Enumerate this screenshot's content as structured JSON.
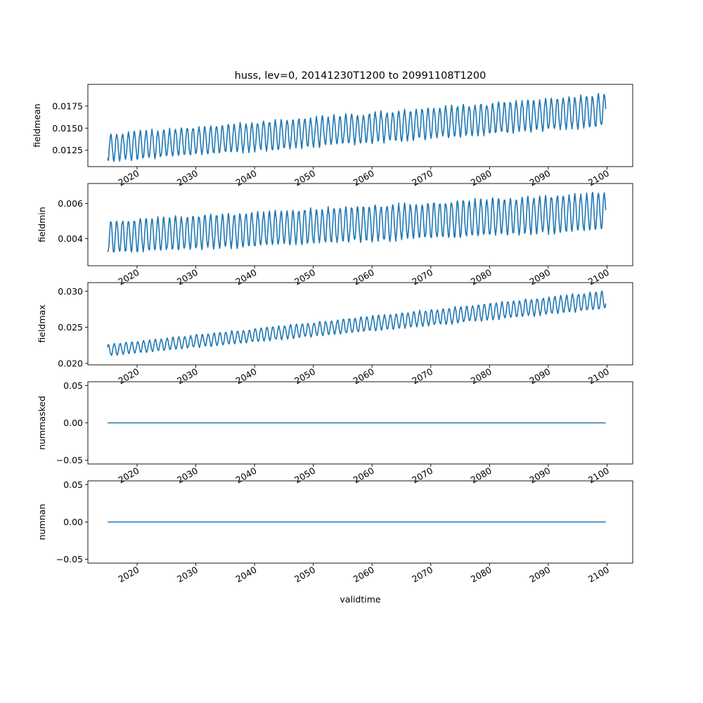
{
  "figure": {
    "title": "huss, lev=0, 20141230T1200 to 20991108T1200",
    "xlabel": "validtime",
    "line_color": "#1f77b4"
  },
  "chart_data": [
    {
      "type": "line",
      "ylabel": "fieldmean",
      "xlim": [
        "2011-08-17",
        "2104-05-17"
      ],
      "ylim": [
        0.01065,
        0.01995
      ],
      "yticks": [
        "0.0125",
        "0.0150",
        "0.0175"
      ],
      "xticks": [
        "2020",
        "2030",
        "2040",
        "2050",
        "2060",
        "2070",
        "2080",
        "2090",
        "2100"
      ],
      "series": {
        "start": "2014-12-30",
        "end": "2099-11-08",
        "step": "monthly",
        "seasonal": true,
        "min_start": 0.0113,
        "min_end": 0.0153,
        "max_start": 0.0143,
        "max_end": 0.0188,
        "peak_month": 7
      }
    },
    {
      "type": "line",
      "ylabel": "fieldmin",
      "xlim": [
        "2011-08-17",
        "2104-05-17"
      ],
      "ylim": [
        0.00245,
        0.00715
      ],
      "yticks": [
        "0.004",
        "0.006"
      ],
      "xticks": [
        "2020",
        "2030",
        "2040",
        "2050",
        "2060",
        "2070",
        "2080",
        "2090",
        "2100"
      ],
      "series": {
        "start": "2014-12-30",
        "end": "2099-11-08",
        "step": "monthly",
        "seasonal": true,
        "min_start": 0.0032,
        "min_end": 0.0045,
        "max_start": 0.005,
        "max_end": 0.0066,
        "peak_month": 7
      }
    },
    {
      "type": "line",
      "ylabel": "fieldmax",
      "xlim": [
        "2011-08-17",
        "2104-05-17"
      ],
      "ylim": [
        0.0198,
        0.0312
      ],
      "yticks": [
        "0.020",
        "0.025",
        "0.030"
      ],
      "xticks": [
        "2020",
        "2030",
        "2040",
        "2050",
        "2060",
        "2070",
        "2080",
        "2090",
        "2100"
      ],
      "series": {
        "start": "2014-12-30",
        "end": "2099-11-08",
        "step": "monthly",
        "seasonal": true,
        "min_start": 0.0211,
        "min_end": 0.0276,
        "max_start": 0.0226,
        "max_end": 0.03,
        "peak_month": 2
      }
    },
    {
      "type": "line",
      "ylabel": "nummasked",
      "xlim": [
        "2011-08-17",
        "2104-05-17"
      ],
      "ylim": [
        -0.055,
        0.055
      ],
      "yticks": [
        "−0.05",
        "0.00",
        "0.05"
      ],
      "xticks": [
        "2020",
        "2030",
        "2040",
        "2050",
        "2060",
        "2070",
        "2080",
        "2090",
        "2100"
      ],
      "series": {
        "start": "2014-12-30",
        "end": "2099-11-08",
        "constant": 0
      }
    },
    {
      "type": "line",
      "ylabel": "numnan",
      "xlim": [
        "2011-08-17",
        "2104-05-17"
      ],
      "ylim": [
        -0.055,
        0.055
      ],
      "yticks": [
        "−0.05",
        "0.00",
        "0.05"
      ],
      "xticks": [
        "2020",
        "2030",
        "2040",
        "2050",
        "2060",
        "2070",
        "2080",
        "2090",
        "2100"
      ],
      "series": {
        "start": "2014-12-30",
        "end": "2099-11-08",
        "constant": 0
      }
    }
  ]
}
